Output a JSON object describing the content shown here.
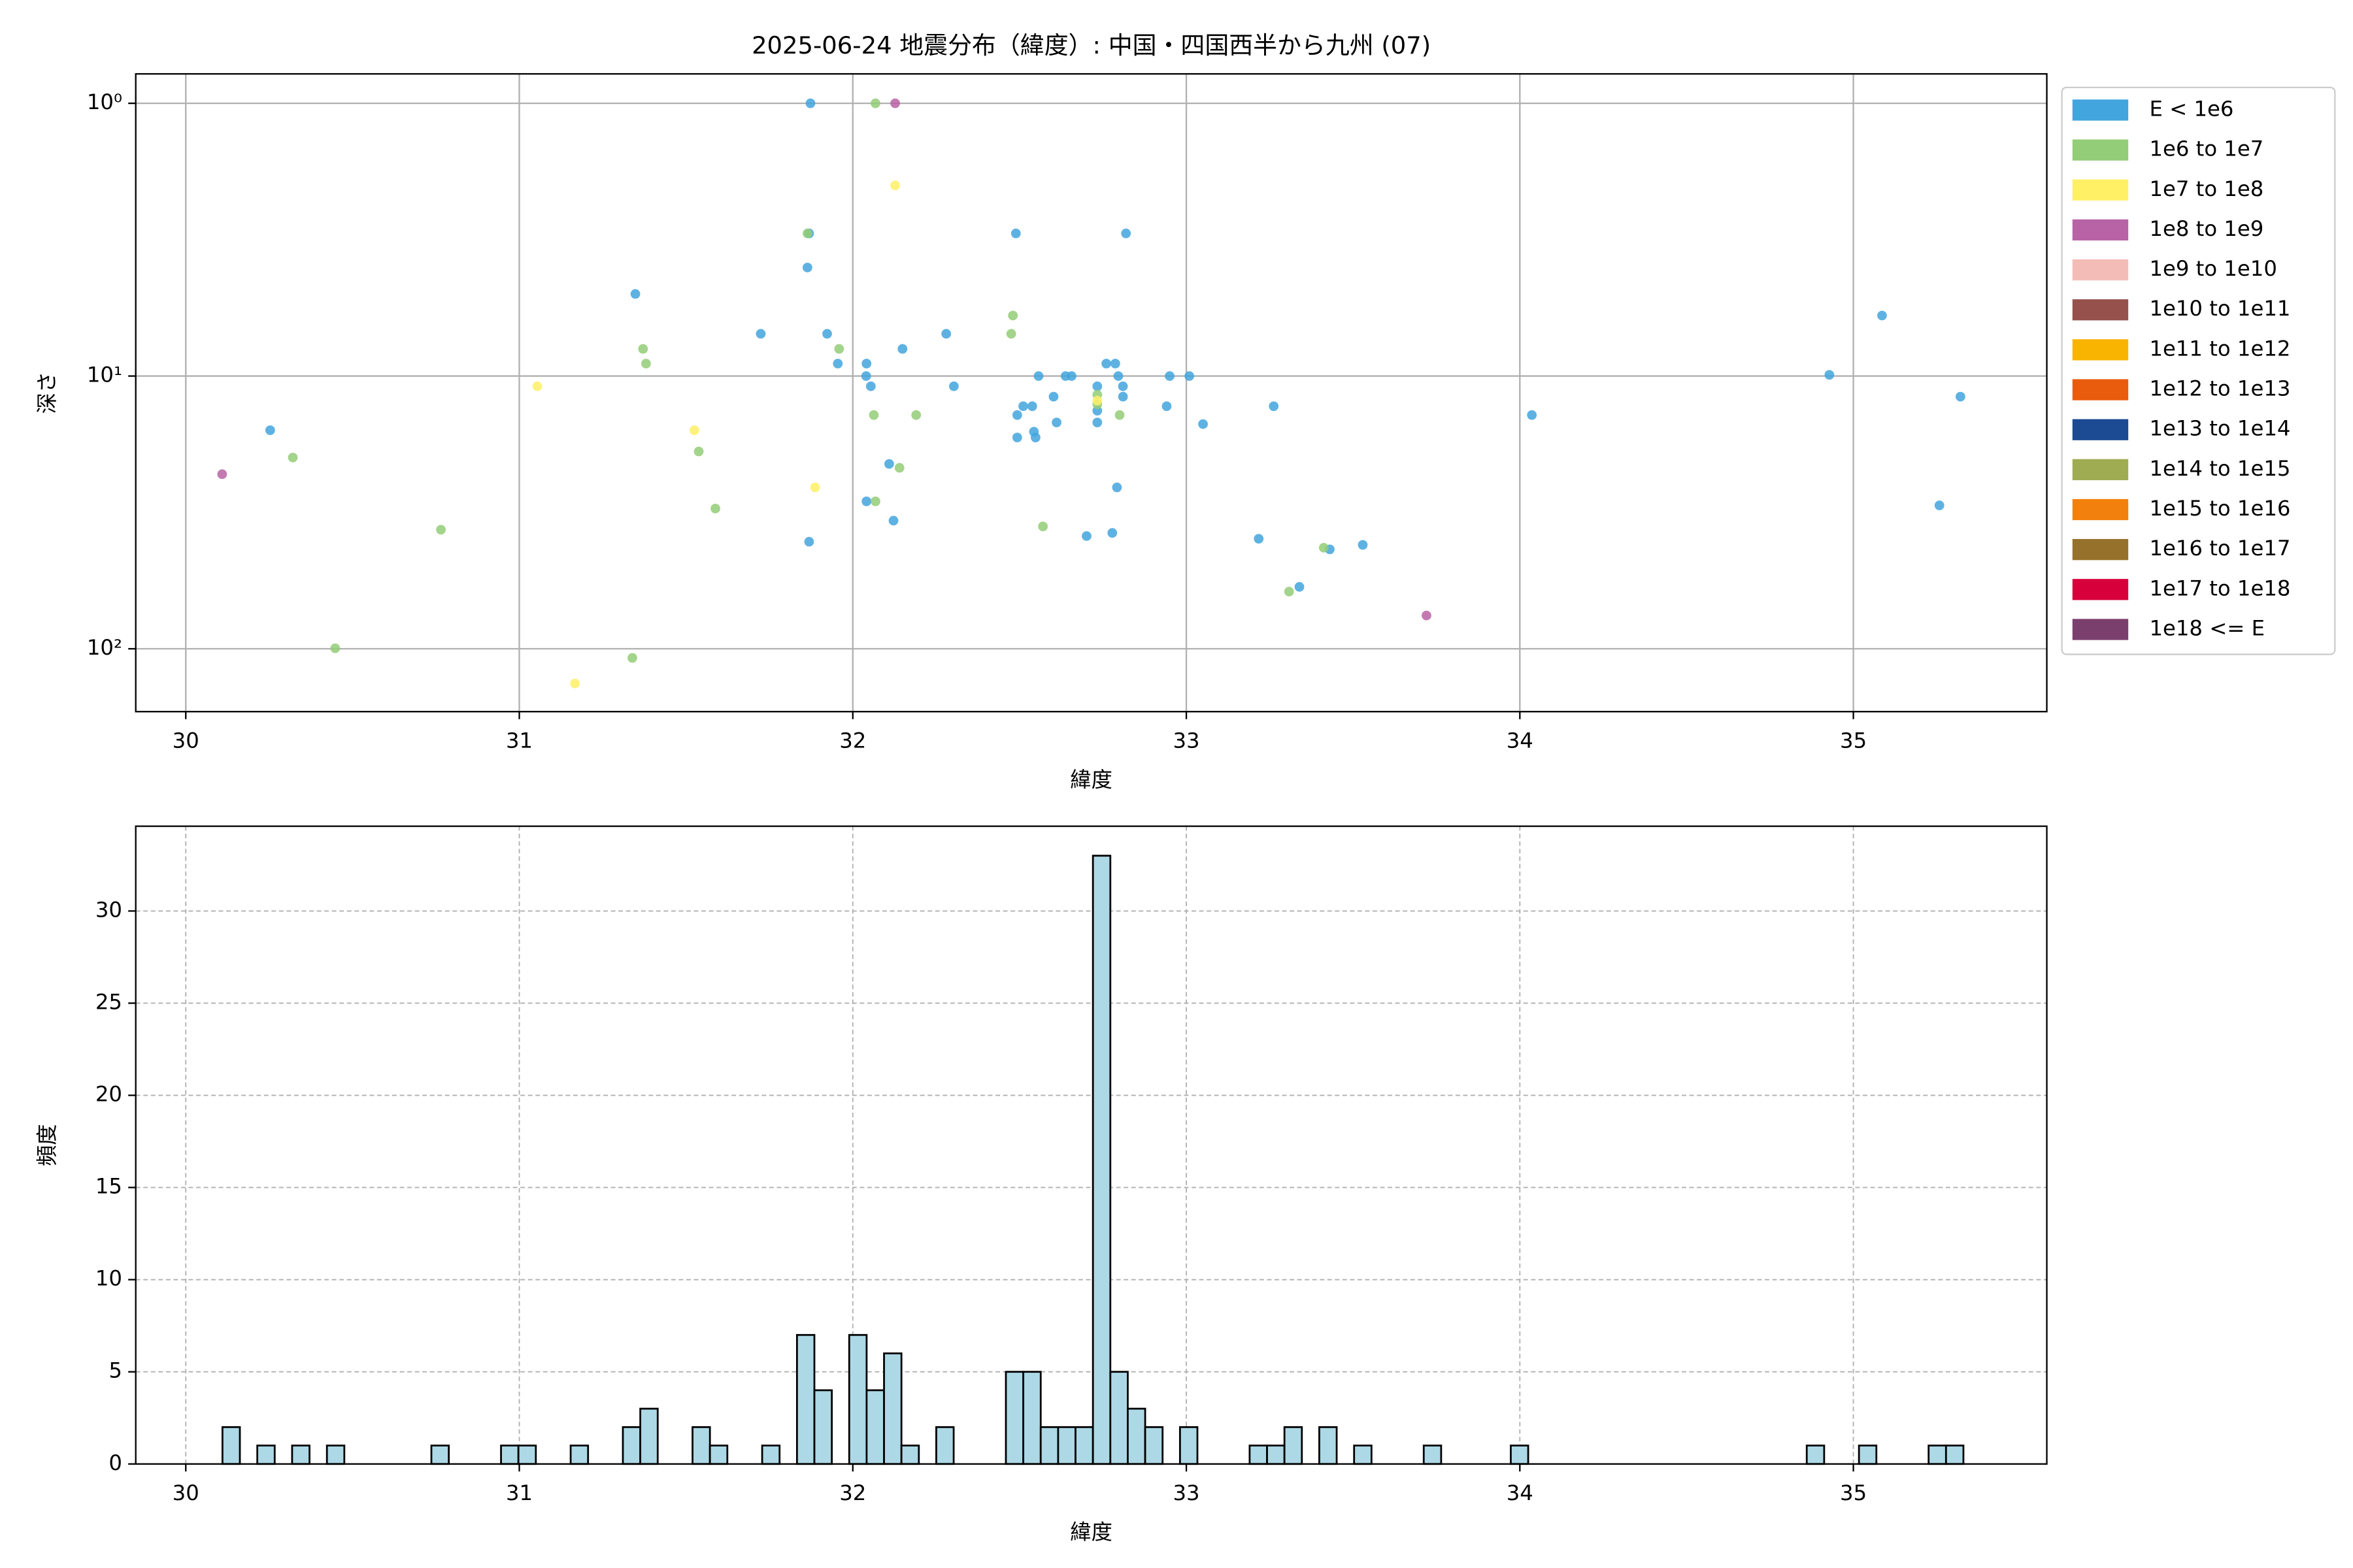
{
  "chart_data": [
    {
      "type": "scatter",
      "title": "2025-06-24 地震分布（緯度）: 中国・四国西半から九州 (07)",
      "xlabel": "緯度",
      "ylabel": "深さ",
      "xlim": [
        29.85,
        35.58
      ],
      "xticks": [
        30,
        31,
        32,
        33,
        34,
        35
      ],
      "ylim": [
        170,
        0.78
      ],
      "log_y": true,
      "yticks": [
        {
          "value": 1,
          "label": "10⁰"
        },
        {
          "value": 10,
          "label": "10¹"
        },
        {
          "value": 100,
          "label": "10²"
        }
      ],
      "grid": true,
      "legend": "outside-right",
      "series": [
        {
          "name": "E < 1e6",
          "color": "#42a5dd",
          "x": [
            31.873,
            31.869,
            31.864,
            31.348,
            31.724,
            31.923,
            32.28,
            32.149,
            31.955,
            32.041,
            32.04,
            32.054,
            32.303,
            32.557,
            32.638,
            32.656,
            32.76,
            32.787,
            32.796,
            32.733,
            32.81,
            32.602,
            32.81,
            32.511,
            32.538,
            32.493,
            32.733,
            32.733,
            32.611,
            32.543,
            32.548,
            32.493,
            32.109,
            32.041,
            32.122,
            31.869,
            32.701,
            32.778,
            32.792,
            32.489,
            32.819,
            30.253,
            32.95,
            33.009,
            32.941,
            33.05,
            33.262,
            33.217,
            33.339,
            33.43,
            33.529,
            34.036,
            34.928,
            35.086,
            35.321,
            35.258
          ],
          "y": [
            1,
            3.0,
            4.0,
            5.0,
            7.0,
            7.0,
            7.0,
            7.95,
            9.0,
            9.0,
            10,
            10.9,
            10.9,
            10,
            10,
            10,
            9.0,
            9.0,
            10,
            10.9,
            10.9,
            11.9,
            11.9,
            12.9,
            12.9,
            13.9,
            13.4,
            14.8,
            14.8,
            16.0,
            16.8,
            16.8,
            21.0,
            28.8,
            33.9,
            40.5,
            38.6,
            37.6,
            25.6,
            3.0,
            3.0,
            15.8,
            10,
            10,
            12.9,
            15.0,
            12.9,
            39.5,
            59.3,
            43.2,
            41.6,
            13.9,
            9.9,
            6.0,
            11.9,
            29.8
          ]
        },
        {
          "name": "1e6 to 1e7",
          "color": "#93cd77",
          "x": [
            32.068,
            31.864,
            31.371,
            31.38,
            31.959,
            32.48,
            32.475,
            32.063,
            32.19,
            32.733,
            32.733,
            32.8,
            30.321,
            31.538,
            32.14,
            32.068,
            31.588,
            30.765,
            32.57,
            33.412,
            33.308,
            30.448,
            31.339
          ],
          "y": [
            1,
            3.0,
            7.95,
            9.0,
            7.95,
            6.0,
            7.0,
            13.9,
            13.9,
            11.7,
            12.7,
            13.9,
            19.9,
            18.9,
            21.7,
            28.8,
            30.6,
            36.6,
            35.6,
            42.6,
            61.7,
            99.6,
            108
          ]
        },
        {
          "name": "1e7 to 1e8",
          "color": "#fff066",
          "x": [
            32.127,
            31.054,
            31.525,
            31.887,
            31.167,
            32.733
          ],
          "y": [
            2.0,
            10.9,
            15.8,
            25.6,
            134,
            12.3
          ]
        },
        {
          "name": "1e8 to 1e9",
          "color": "#b863a6",
          "x": [
            32.127,
            30.109,
            33.72
          ],
          "y": [
            1.0,
            22.9,
            75.5
          ]
        },
        {
          "name": "1e9 to 1e10",
          "color": "#f4bcb7",
          "x": [],
          "y": []
        },
        {
          "name": "1e10 to 1e11",
          "color": "#96514d",
          "x": [],
          "y": []
        },
        {
          "name": "1e11 to 1e12",
          "color": "#f8b400",
          "x": [],
          "y": []
        },
        {
          "name": "1e12 to 1e13",
          "color": "#e95b0d",
          "x": [],
          "y": []
        },
        {
          "name": "1e13 to 1e14",
          "color": "#1c4a93",
          "x": [],
          "y": []
        },
        {
          "name": "1e14 to 1e15",
          "color": "#a0ac52",
          "x": [],
          "y": []
        },
        {
          "name": "1e15 to 1e16",
          "color": "#f2800c",
          "x": [],
          "y": []
        },
        {
          "name": "1e16 to 1e17",
          "color": "#95712b",
          "x": [],
          "y": []
        },
        {
          "name": "1e17 to 1e18",
          "color": "#d7003a",
          "x": [],
          "y": []
        },
        {
          "name": "1e18 <= E",
          "color": "#7b3f6e",
          "x": [],
          "y": []
        }
      ]
    },
    {
      "type": "histogram",
      "xlabel": "緯度",
      "ylabel": "頻度",
      "xlim": [
        29.85,
        35.58
      ],
      "xticks": [
        30,
        31,
        32,
        33,
        34,
        35
      ],
      "ylim": [
        0,
        34.6
      ],
      "yticks": [
        0,
        5,
        10,
        15,
        20,
        25,
        30
      ],
      "grid": true,
      "grid_style": "dashed",
      "color": "#add8e6",
      "edgecolor": "#000000",
      "bins": [
        30.11,
        30.1622,
        30.2144,
        30.2666,
        30.3188,
        30.371,
        30.4232,
        30.4754,
        30.5276,
        30.5798,
        30.632,
        30.6842,
        30.7364,
        30.7886,
        30.8408,
        30.893,
        30.9452,
        30.9974,
        31.0496,
        31.1018,
        31.154,
        31.2062,
        31.2584,
        31.3106,
        31.3628,
        31.415,
        31.4672,
        31.5194,
        31.5716,
        31.6238,
        31.676,
        31.7282,
        31.7804,
        31.8326,
        31.8848,
        31.937,
        31.9892,
        32.0414,
        32.0936,
        32.1458,
        32.198,
        32.2502,
        32.3024,
        32.3546,
        32.4068,
        32.459,
        32.5112,
        32.5634,
        32.6156,
        32.6678,
        32.72,
        32.7722,
        32.8244,
        32.8766,
        32.9288,
        32.981,
        33.0332,
        33.0854,
        33.1376,
        33.1898,
        33.242,
        33.2942,
        33.3464,
        33.3986,
        33.4508,
        33.503,
        33.5552,
        33.6074,
        33.6596,
        33.7118,
        33.764,
        33.8162,
        33.8684,
        33.9206,
        33.9728,
        34.025,
        34.0772,
        34.1294,
        34.1816,
        34.2338,
        34.286,
        34.3382,
        34.3904,
        34.4426,
        34.4948,
        34.547,
        34.5992,
        34.6514,
        34.7036,
        34.7558,
        34.808,
        34.8602,
        34.9124,
        34.9646,
        35.0168,
        35.069,
        35.1212,
        35.1734,
        35.2256,
        35.2778,
        35.33
      ],
      "counts": [
        2,
        0,
        1,
        0,
        1,
        0,
        1,
        0,
        0,
        0,
        0,
        0,
        1,
        0,
        0,
        0,
        1,
        1,
        0,
        0,
        1,
        0,
        0,
        2,
        3,
        0,
        0,
        2,
        1,
        0,
        0,
        1,
        0,
        7,
        4,
        0,
        7,
        4,
        6,
        1,
        0,
        2,
        0,
        0,
        0,
        5,
        5,
        2,
        2,
        2,
        33,
        5,
        3,
        2,
        0,
        2,
        0,
        0,
        0,
        1,
        1,
        2,
        0,
        2,
        0,
        1,
        0,
        0,
        0,
        1,
        0,
        0,
        0,
        0,
        1,
        0,
        0,
        0,
        0,
        0,
        0,
        0,
        0,
        0,
        0,
        0,
        0,
        0,
        0,
        0,
        0,
        1,
        0,
        0,
        1,
        0,
        0,
        0,
        1,
        1
      ]
    }
  ]
}
